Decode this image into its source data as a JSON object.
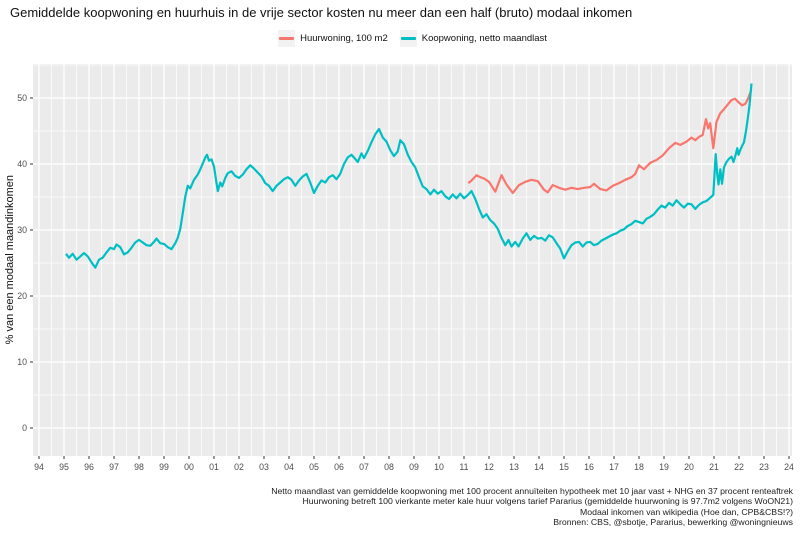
{
  "title": "Gemiddelde koopwoning en huurhuis in de vrije sector kosten nu meer dan een half (bruto) modaal inkomen",
  "legend": {
    "items": [
      {
        "label": "Huurwoning, 100 m2",
        "color": "#F8766D"
      },
      {
        "label": "Koopwoning, netto maandlast",
        "color": "#00BFC4"
      }
    ]
  },
  "y_axis": {
    "label": "% van een modaal maandinkomen",
    "ticks": [
      0,
      10,
      20,
      30,
      40,
      50
    ]
  },
  "x_axis": {
    "ticks": [
      "94",
      "95",
      "96",
      "97",
      "98",
      "99",
      "00",
      "01",
      "02",
      "03",
      "04",
      "05",
      "06",
      "07",
      "08",
      "09",
      "10",
      "11",
      "12",
      "13",
      "14",
      "15",
      "16",
      "17",
      "18",
      "19",
      "20",
      "21",
      "22",
      "23",
      "24"
    ],
    "tick_years": [
      1994,
      1995,
      1996,
      1997,
      1998,
      1999,
      2000,
      2001,
      2002,
      2003,
      2004,
      2005,
      2006,
      2007,
      2008,
      2009,
      2010,
      2011,
      2012,
      2013,
      2014,
      2015,
      2016,
      2017,
      2018,
      2019,
      2020,
      2021,
      2022,
      2023,
      2024
    ]
  },
  "caption": {
    "lines": [
      "Netto maandlast van gemiddelde koopwoning met 100 procent annuïteiten hypotheek met 10 jaar vast + NHG en 37 procent renteaftrek",
      "Huurwoning betreft 100 vierkante meter kale huur volgens tarief Pararius (gemiddelde huurwoning is 97.7m2 volgens WoON21)",
      "Modaal inkomen van wikipedia (Hoe dan, CPB&CBS!?)",
      "Bronnen: CBS, @sbotje, Pararius, bewerking @woningnieuws"
    ]
  },
  "panel": {
    "bg": "#EBEBEB",
    "grid_color": "#FFFFFF",
    "tick_color": "#333333",
    "tick_label_color": "#4D4D4D"
  },
  "chart_data": {
    "type": "line",
    "title": "Gemiddelde koopwoning en huurhuis in de vrije sector kosten nu meer dan een half (bruto) modaal inkomen",
    "xlabel": "",
    "ylabel": "% van een modaal maandinkomen",
    "xlim": [
      1993.76,
      2024.12
    ],
    "ylim": [
      -4.2,
      55.2
    ],
    "y_major_ticks": [
      0,
      10,
      20,
      30,
      40,
      50
    ],
    "y_minor_ticks": [
      5,
      15,
      25,
      35,
      45,
      55
    ],
    "grid": true,
    "legend_position": "top",
    "series": [
      {
        "name": "Huurwoning, 100 m2",
        "color": "#F8766D",
        "points": [
          [
            2011.17,
            37.1
          ],
          [
            2011.3,
            37.5
          ],
          [
            2011.5,
            38.3
          ],
          [
            2011.65,
            38.0
          ],
          [
            2011.8,
            37.8
          ],
          [
            2012.0,
            37.3
          ],
          [
            2012.25,
            35.8
          ],
          [
            2012.5,
            38.3
          ],
          [
            2012.7,
            36.9
          ],
          [
            2012.95,
            35.6
          ],
          [
            2013.2,
            36.8
          ],
          [
            2013.45,
            37.3
          ],
          [
            2013.7,
            37.6
          ],
          [
            2013.95,
            37.4
          ],
          [
            2014.2,
            36.1
          ],
          [
            2014.35,
            35.7
          ],
          [
            2014.55,
            36.8
          ],
          [
            2014.8,
            36.4
          ],
          [
            2015.05,
            36.1
          ],
          [
            2015.3,
            36.4
          ],
          [
            2015.55,
            36.2
          ],
          [
            2015.8,
            36.4
          ],
          [
            2016.05,
            36.5
          ],
          [
            2016.2,
            37.0
          ],
          [
            2016.45,
            36.2
          ],
          [
            2016.7,
            36.0
          ],
          [
            2016.95,
            36.7
          ],
          [
            2017.2,
            37.1
          ],
          [
            2017.45,
            37.6
          ],
          [
            2017.7,
            38.0
          ],
          [
            2017.85,
            38.5
          ],
          [
            2018.0,
            39.8
          ],
          [
            2018.2,
            39.2
          ],
          [
            2018.45,
            40.2
          ],
          [
            2018.7,
            40.6
          ],
          [
            2018.95,
            41.3
          ],
          [
            2019.2,
            42.4
          ],
          [
            2019.45,
            43.2
          ],
          [
            2019.65,
            42.9
          ],
          [
            2019.9,
            43.4
          ],
          [
            2020.1,
            44.0
          ],
          [
            2020.25,
            43.6
          ],
          [
            2020.4,
            44.1
          ],
          [
            2020.55,
            44.4
          ],
          [
            2020.68,
            46.8
          ],
          [
            2020.77,
            45.4
          ],
          [
            2020.85,
            46.2
          ],
          [
            2020.97,
            42.4
          ],
          [
            2021.1,
            46.4
          ],
          [
            2021.25,
            47.7
          ],
          [
            2021.4,
            48.3
          ],
          [
            2021.55,
            49.0
          ],
          [
            2021.7,
            49.7
          ],
          [
            2021.85,
            49.9
          ],
          [
            2021.97,
            49.4
          ],
          [
            2022.12,
            48.9
          ],
          [
            2022.25,
            49.1
          ],
          [
            2022.35,
            49.8
          ],
          [
            2022.47,
            51.0
          ]
        ]
      },
      {
        "name": "Koopwoning, netto maandlast",
        "color": "#00BFC4",
        "points": [
          [
            1995.08,
            26.4
          ],
          [
            1995.2,
            25.8
          ],
          [
            1995.35,
            26.4
          ],
          [
            1995.5,
            25.5
          ],
          [
            1995.65,
            26.0
          ],
          [
            1995.8,
            26.5
          ],
          [
            1995.95,
            26.0
          ],
          [
            1996.1,
            25.1
          ],
          [
            1996.25,
            24.3
          ],
          [
            1996.4,
            25.5
          ],
          [
            1996.55,
            25.8
          ],
          [
            1996.7,
            26.6
          ],
          [
            1996.85,
            27.3
          ],
          [
            1997.0,
            27.1
          ],
          [
            1997.1,
            27.8
          ],
          [
            1997.25,
            27.4
          ],
          [
            1997.4,
            26.3
          ],
          [
            1997.55,
            26.6
          ],
          [
            1997.7,
            27.3
          ],
          [
            1997.85,
            28.1
          ],
          [
            1998.0,
            28.5
          ],
          [
            1998.15,
            28.1
          ],
          [
            1998.3,
            27.7
          ],
          [
            1998.45,
            27.6
          ],
          [
            1998.6,
            28.2
          ],
          [
            1998.7,
            28.7
          ],
          [
            1998.85,
            28.0
          ],
          [
            1999.0,
            27.9
          ],
          [
            1999.15,
            27.4
          ],
          [
            1999.3,
            27.1
          ],
          [
            1999.45,
            28.0
          ],
          [
            1999.55,
            28.8
          ],
          [
            1999.65,
            30.2
          ],
          [
            1999.75,
            32.6
          ],
          [
            1999.85,
            35.0
          ],
          [
            1999.95,
            36.7
          ],
          [
            2000.05,
            36.3
          ],
          [
            2000.2,
            37.6
          ],
          [
            2000.35,
            38.4
          ],
          [
            2000.5,
            39.6
          ],
          [
            2000.65,
            41.0
          ],
          [
            2000.72,
            41.4
          ],
          [
            2000.8,
            40.5
          ],
          [
            2000.9,
            40.7
          ],
          [
            2001.0,
            39.6
          ],
          [
            2001.08,
            37.6
          ],
          [
            2001.15,
            35.9
          ],
          [
            2001.25,
            37.2
          ],
          [
            2001.33,
            36.6
          ],
          [
            2001.45,
            37.9
          ],
          [
            2001.55,
            38.6
          ],
          [
            2001.7,
            38.9
          ],
          [
            2001.85,
            38.2
          ],
          [
            2002.0,
            37.9
          ],
          [
            2002.15,
            38.4
          ],
          [
            2002.3,
            39.2
          ],
          [
            2002.45,
            39.8
          ],
          [
            2002.6,
            39.3
          ],
          [
            2002.75,
            38.7
          ],
          [
            2002.9,
            38.1
          ],
          [
            2003.05,
            37.1
          ],
          [
            2003.2,
            36.7
          ],
          [
            2003.35,
            35.9
          ],
          [
            2003.5,
            36.7
          ],
          [
            2003.65,
            37.2
          ],
          [
            2003.8,
            37.7
          ],
          [
            2003.95,
            38.0
          ],
          [
            2004.1,
            37.6
          ],
          [
            2004.25,
            36.7
          ],
          [
            2004.4,
            37.5
          ],
          [
            2004.55,
            38.1
          ],
          [
            2004.7,
            38.5
          ],
          [
            2004.85,
            37.2
          ],
          [
            2005.0,
            35.6
          ],
          [
            2005.15,
            36.7
          ],
          [
            2005.3,
            37.5
          ],
          [
            2005.45,
            37.2
          ],
          [
            2005.6,
            38.0
          ],
          [
            2005.75,
            38.3
          ],
          [
            2005.9,
            37.7
          ],
          [
            2006.05,
            38.5
          ],
          [
            2006.2,
            40.0
          ],
          [
            2006.35,
            41.0
          ],
          [
            2006.5,
            41.4
          ],
          [
            2006.62,
            40.9
          ],
          [
            2006.75,
            40.3
          ],
          [
            2006.9,
            41.6
          ],
          [
            2007.0,
            40.9
          ],
          [
            2007.15,
            42.0
          ],
          [
            2007.3,
            43.3
          ],
          [
            2007.45,
            44.5
          ],
          [
            2007.6,
            45.3
          ],
          [
            2007.75,
            44.0
          ],
          [
            2007.9,
            43.4
          ],
          [
            2008.05,
            42.1
          ],
          [
            2008.2,
            41.2
          ],
          [
            2008.35,
            41.9
          ],
          [
            2008.45,
            43.6
          ],
          [
            2008.6,
            43.0
          ],
          [
            2008.75,
            41.4
          ],
          [
            2008.9,
            40.3
          ],
          [
            2009.05,
            39.5
          ],
          [
            2009.2,
            38.0
          ],
          [
            2009.35,
            36.6
          ],
          [
            2009.5,
            36.2
          ],
          [
            2009.65,
            35.4
          ],
          [
            2009.8,
            36.1
          ],
          [
            2009.95,
            35.5
          ],
          [
            2010.1,
            35.9
          ],
          [
            2010.25,
            35.1
          ],
          [
            2010.4,
            34.7
          ],
          [
            2010.55,
            35.4
          ],
          [
            2010.7,
            34.8
          ],
          [
            2010.85,
            35.5
          ],
          [
            2011.0,
            34.8
          ],
          [
            2011.15,
            35.3
          ],
          [
            2011.3,
            35.9
          ],
          [
            2011.45,
            34.7
          ],
          [
            2011.6,
            33.2
          ],
          [
            2011.75,
            31.9
          ],
          [
            2011.9,
            32.4
          ],
          [
            2012.05,
            31.5
          ],
          [
            2012.2,
            31.0
          ],
          [
            2012.35,
            30.2
          ],
          [
            2012.5,
            28.8
          ],
          [
            2012.65,
            27.7
          ],
          [
            2012.78,
            28.5
          ],
          [
            2012.9,
            27.5
          ],
          [
            2013.05,
            28.2
          ],
          [
            2013.18,
            27.5
          ],
          [
            2013.35,
            28.7
          ],
          [
            2013.5,
            29.5
          ],
          [
            2013.65,
            28.5
          ],
          [
            2013.8,
            29.1
          ],
          [
            2013.95,
            28.7
          ],
          [
            2014.1,
            28.8
          ],
          [
            2014.25,
            28.4
          ],
          [
            2014.4,
            29.2
          ],
          [
            2014.55,
            28.9
          ],
          [
            2014.7,
            28.0
          ],
          [
            2014.85,
            27.2
          ],
          [
            2015.0,
            25.7
          ],
          [
            2015.15,
            26.8
          ],
          [
            2015.3,
            27.7
          ],
          [
            2015.45,
            28.1
          ],
          [
            2015.6,
            28.2
          ],
          [
            2015.75,
            27.5
          ],
          [
            2015.9,
            28.1
          ],
          [
            2016.05,
            28.2
          ],
          [
            2016.2,
            27.7
          ],
          [
            2016.35,
            27.9
          ],
          [
            2016.5,
            28.4
          ],
          [
            2016.65,
            28.7
          ],
          [
            2016.8,
            29.0
          ],
          [
            2016.95,
            29.3
          ],
          [
            2017.1,
            29.5
          ],
          [
            2017.25,
            29.9
          ],
          [
            2017.4,
            30.1
          ],
          [
            2017.55,
            30.6
          ],
          [
            2017.7,
            30.9
          ],
          [
            2017.85,
            31.4
          ],
          [
            2018.0,
            31.2
          ],
          [
            2018.15,
            31.0
          ],
          [
            2018.3,
            31.7
          ],
          [
            2018.45,
            32.0
          ],
          [
            2018.6,
            32.4
          ],
          [
            2018.75,
            33.1
          ],
          [
            2018.9,
            33.7
          ],
          [
            2019.05,
            33.4
          ],
          [
            2019.2,
            34.1
          ],
          [
            2019.35,
            33.7
          ],
          [
            2019.5,
            34.5
          ],
          [
            2019.65,
            33.9
          ],
          [
            2019.8,
            33.4
          ],
          [
            2019.95,
            34.0
          ],
          [
            2020.1,
            33.9
          ],
          [
            2020.25,
            33.2
          ],
          [
            2020.4,
            33.8
          ],
          [
            2020.55,
            34.2
          ],
          [
            2020.7,
            34.4
          ],
          [
            2020.85,
            34.9
          ],
          [
            2020.97,
            35.3
          ],
          [
            2021.07,
            41.5
          ],
          [
            2021.13,
            38.4
          ],
          [
            2021.18,
            36.9
          ],
          [
            2021.25,
            39.2
          ],
          [
            2021.32,
            37.0
          ],
          [
            2021.4,
            39.5
          ],
          [
            2021.5,
            40.3
          ],
          [
            2021.6,
            40.8
          ],
          [
            2021.7,
            41.1
          ],
          [
            2021.78,
            40.3
          ],
          [
            2021.88,
            41.6
          ],
          [
            2021.93,
            42.4
          ],
          [
            2021.98,
            41.4
          ],
          [
            2022.06,
            42.2
          ],
          [
            2022.13,
            42.8
          ],
          [
            2022.2,
            43.3
          ],
          [
            2022.28,
            45.0
          ],
          [
            2022.35,
            46.8
          ],
          [
            2022.42,
            48.9
          ],
          [
            2022.5,
            52.2
          ]
        ]
      }
    ]
  }
}
